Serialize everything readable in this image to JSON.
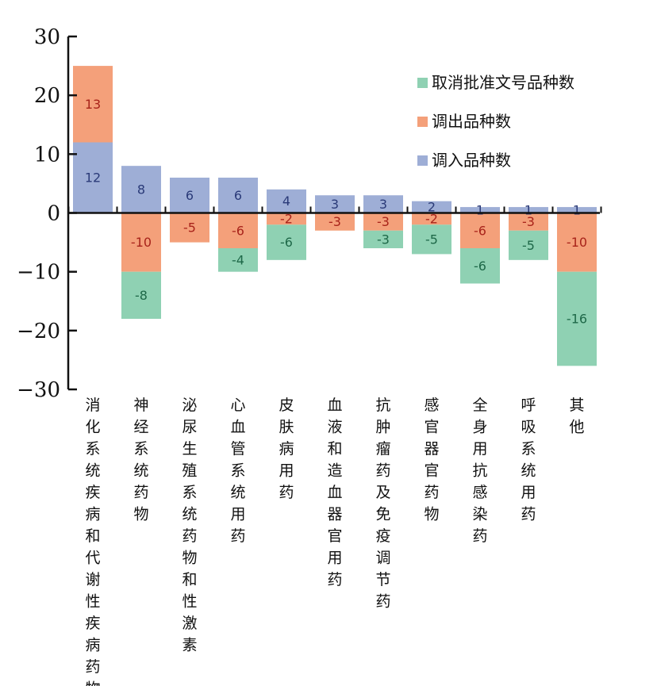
{
  "chart_data": {
    "type": "bar",
    "stacked": true,
    "categories": [
      "消化系统疾病和代谢性疾病药物",
      "神经系统药物",
      "泌尿生殖系统药物和性激素",
      "心血管系统用药",
      "皮肤病用药",
      "血液和造血器官用药",
      "抗肿瘤药及免疫调节药",
      "感官器官药物",
      "全身用抗感染药",
      "呼吸系统用药",
      "其他"
    ],
    "series": [
      {
        "name": "调入品种数",
        "color": "#9eaed6",
        "label_color": "#2a3a78",
        "values": [
          12,
          8,
          6,
          6,
          4,
          3,
          3,
          2,
          1,
          1,
          1
        ]
      },
      {
        "name": "调出品种数",
        "color": "#f4a07a",
        "label_color": "#a8231a",
        "values": [
          13,
          -10,
          -5,
          -6,
          -2,
          -3,
          -3,
          -2,
          -6,
          -3,
          -10
        ]
      },
      {
        "name": "取消批准文号品种数",
        "color": "#8fd1b3",
        "label_color": "#1e6848",
        "values": [
          0,
          -8,
          0,
          -4,
          -6,
          0,
          -3,
          -5,
          -6,
          -5,
          -16
        ]
      }
    ],
    "legend_order": [
      "取消批准文号品种数",
      "调出品种数",
      "调入品种数"
    ],
    "legend_position": "top-right",
    "ylim": [
      -30,
      30
    ],
    "yticks": [
      "30",
      "20",
      "10",
      "0",
      "−10",
      "−20",
      "−30"
    ],
    "ytick_values": [
      30,
      20,
      10,
      0,
      -10,
      -20,
      -30
    ],
    "grid": false,
    "title": "",
    "xlabel": "",
    "ylabel": ""
  }
}
